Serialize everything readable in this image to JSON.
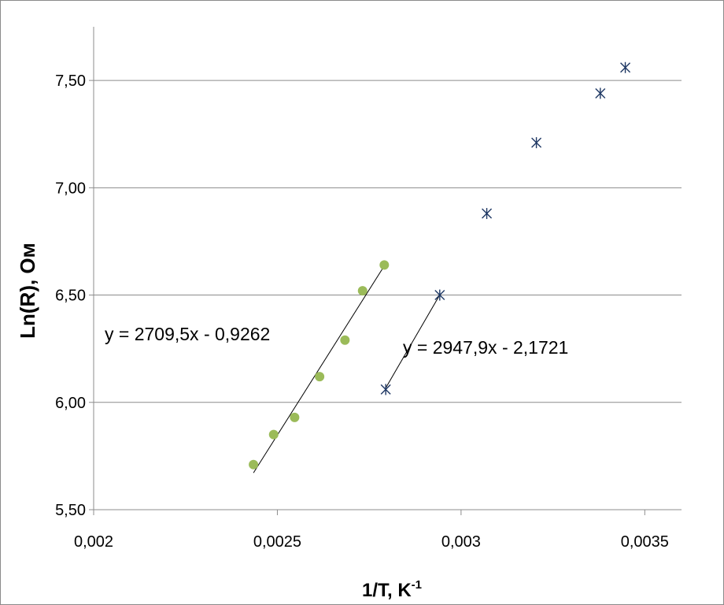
{
  "chart_data": {
    "type": "scatter",
    "xlabel": "1/T,  K",
    "xlabel_sup": "-1",
    "ylabel": "Ln(R), Ом",
    "xlim": [
      0.002,
      0.0036
    ],
    "ylim": [
      5.5,
      7.75
    ],
    "x_ticks": [
      0.002,
      0.0025,
      0.003,
      0.0035
    ],
    "x_tick_labels": [
      "0,002",
      "0,0025",
      "0,003",
      "0,0035"
    ],
    "y_ticks": [
      5.5,
      6.0,
      6.5,
      7.0,
      7.5
    ],
    "y_tick_labels": [
      "5,50",
      "6,00",
      "6,50",
      "7,00",
      "7,50"
    ],
    "grid": "horizontal",
    "series": [
      {
        "marker": "circle",
        "color": "#9bbb59",
        "points": [
          {
            "x": 0.002435,
            "y": 5.71
          },
          {
            "x": 0.00249,
            "y": 5.85
          },
          {
            "x": 0.002547,
            "y": 5.93
          },
          {
            "x": 0.002615,
            "y": 6.12
          },
          {
            "x": 0.002684,
            "y": 6.29
          },
          {
            "x": 0.002732,
            "y": 6.52
          },
          {
            "x": 0.002791,
            "y": 6.64
          }
        ],
        "trendline": {
          "slope": 2709.5,
          "intercept": -0.9262,
          "x_range": [
            0.002435,
            0.002791
          ]
        },
        "equation": "y = 2709,5x - 0,9262"
      },
      {
        "marker": "asterisk",
        "color": "#1f3864",
        "points": [
          {
            "x": 0.002795,
            "y": 6.06
          },
          {
            "x": 0.002942,
            "y": 6.5
          },
          {
            "x": 0.00307,
            "y": 6.88
          },
          {
            "x": 0.003205,
            "y": 7.21
          },
          {
            "x": 0.003379,
            "y": 7.44
          },
          {
            "x": 0.003447,
            "y": 7.56
          }
        ],
        "trendline": {
          "slope": 2947.9,
          "intercept": -2.1721,
          "x_range": [
            0.002795,
            0.002942
          ]
        },
        "equation": "y = 2947,9x - 2,1721"
      }
    ]
  }
}
